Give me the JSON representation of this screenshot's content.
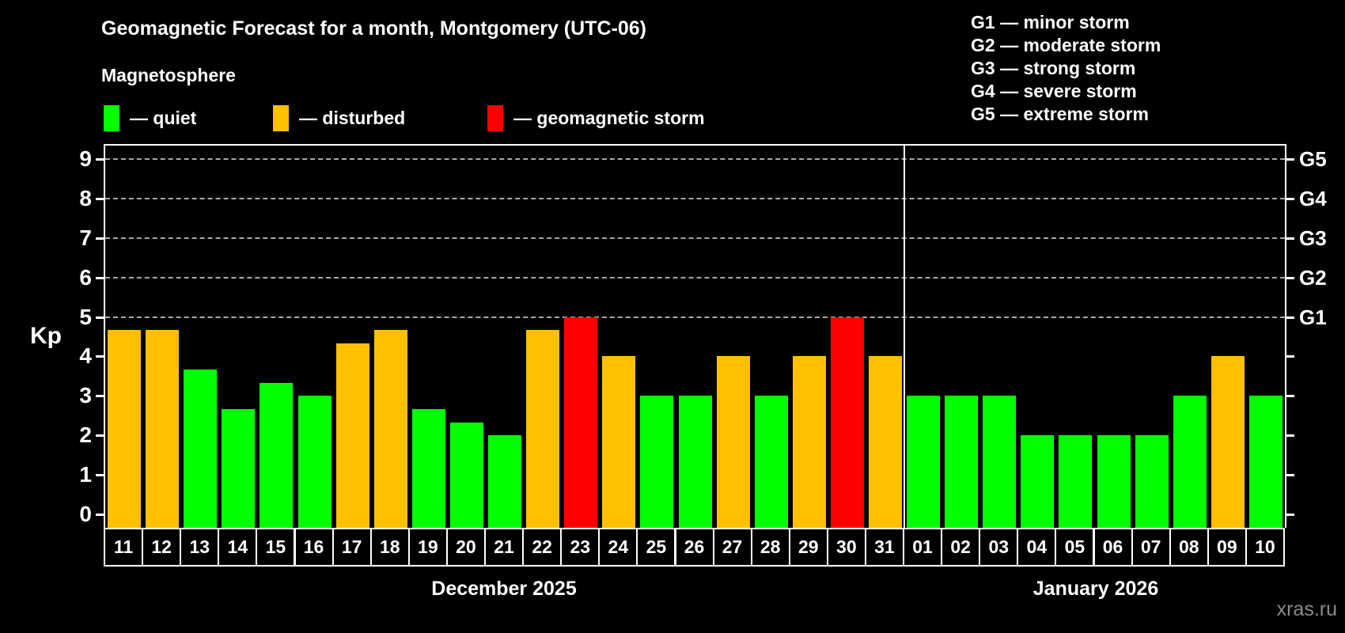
{
  "page": {
    "background": "#000000",
    "watermark": "xras.ru"
  },
  "header": {
    "title": "Geomagnetic Forecast for a month, Montgomery (UTC-06)",
    "subtitle": "Magnetosphere"
  },
  "legend": {
    "items": [
      {
        "key": "quiet",
        "label": "— quiet",
        "color": "#00FF00"
      },
      {
        "key": "disturbed",
        "label": "— disturbed",
        "color": "#FFC000"
      },
      {
        "key": "storm",
        "label": "— geomagnetic storm",
        "color": "#FF0000"
      }
    ]
  },
  "g_legend": {
    "items": [
      "G1 — minor storm",
      "G2 — moderate storm",
      "G3 — strong storm",
      "G4 — severe storm",
      "G5 — extreme storm"
    ]
  },
  "axes": {
    "y_label": "Kp",
    "y_ticks": [
      9,
      8,
      7,
      6,
      5,
      4,
      3,
      2,
      1,
      0
    ],
    "right_ticks": [
      {
        "label": "G5",
        "kp": 9
      },
      {
        "label": "G4",
        "kp": 8
      },
      {
        "label": "G3",
        "kp": 7
      },
      {
        "label": "G2",
        "kp": 6
      },
      {
        "label": "G1",
        "kp": 5
      }
    ]
  },
  "chart_data": {
    "type": "bar",
    "title": "Geomagnetic Forecast for a month, Montgomery (UTC-06)",
    "xlabel": "",
    "ylabel": "Kp",
    "ylim": [
      0,
      9
    ],
    "plot_kp_range": [
      -0.35,
      9.35
    ],
    "gridlines": [
      5,
      6,
      7,
      8,
      9
    ],
    "grid": true,
    "legend_position": "top",
    "state_colors": {
      "quiet": "#00FF00",
      "disturbed": "#FFC000",
      "storm": "#FF0000"
    },
    "series": [
      {
        "month": "December 2025",
        "points": [
          {
            "day": "11",
            "kp": 4.67,
            "state": "disturbed"
          },
          {
            "day": "12",
            "kp": 4.67,
            "state": "disturbed"
          },
          {
            "day": "13",
            "kp": 3.67,
            "state": "quiet"
          },
          {
            "day": "14",
            "kp": 2.67,
            "state": "quiet"
          },
          {
            "day": "15",
            "kp": 3.33,
            "state": "quiet"
          },
          {
            "day": "16",
            "kp": 3.0,
            "state": "quiet"
          },
          {
            "day": "17",
            "kp": 4.33,
            "state": "disturbed"
          },
          {
            "day": "18",
            "kp": 4.67,
            "state": "disturbed"
          },
          {
            "day": "19",
            "kp": 2.67,
            "state": "quiet"
          },
          {
            "day": "20",
            "kp": 2.33,
            "state": "quiet"
          },
          {
            "day": "21",
            "kp": 2.0,
            "state": "quiet"
          },
          {
            "day": "22",
            "kp": 4.67,
            "state": "disturbed"
          },
          {
            "day": "23",
            "kp": 5.0,
            "state": "storm"
          },
          {
            "day": "24",
            "kp": 4.0,
            "state": "disturbed"
          },
          {
            "day": "25",
            "kp": 3.0,
            "state": "quiet"
          },
          {
            "day": "26",
            "kp": 3.0,
            "state": "quiet"
          },
          {
            "day": "27",
            "kp": 4.0,
            "state": "disturbed"
          },
          {
            "day": "28",
            "kp": 3.0,
            "state": "quiet"
          },
          {
            "day": "29",
            "kp": 4.0,
            "state": "disturbed"
          },
          {
            "day": "30",
            "kp": 5.0,
            "state": "storm"
          },
          {
            "day": "31",
            "kp": 4.0,
            "state": "disturbed"
          }
        ]
      },
      {
        "month": "January 2026",
        "points": [
          {
            "day": "01",
            "kp": 3.0,
            "state": "quiet"
          },
          {
            "day": "02",
            "kp": 3.0,
            "state": "quiet"
          },
          {
            "day": "03",
            "kp": 3.0,
            "state": "quiet"
          },
          {
            "day": "04",
            "kp": 2.0,
            "state": "quiet"
          },
          {
            "day": "05",
            "kp": 2.0,
            "state": "quiet"
          },
          {
            "day": "06",
            "kp": 2.0,
            "state": "quiet"
          },
          {
            "day": "07",
            "kp": 2.0,
            "state": "quiet"
          },
          {
            "day": "08",
            "kp": 3.0,
            "state": "quiet"
          },
          {
            "day": "09",
            "kp": 4.0,
            "state": "disturbed"
          },
          {
            "day": "10",
            "kp": 3.0,
            "state": "quiet"
          }
        ]
      }
    ]
  }
}
